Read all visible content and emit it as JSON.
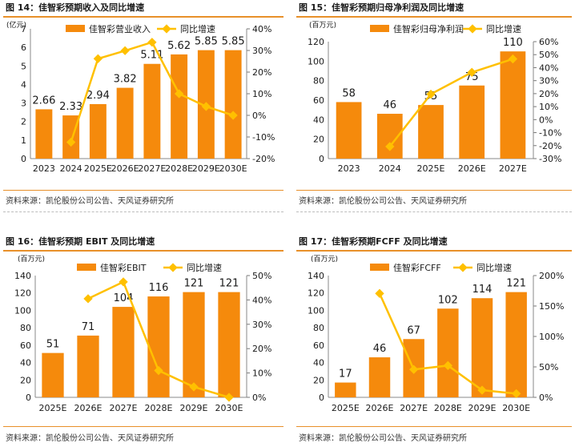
{
  "colors": {
    "bar": "#f58a0c",
    "line": "#ffc000",
    "accent": "#e8902a",
    "text": "#1a1a1a"
  },
  "charts": [
    {
      "title": "图 14：佳智彩预期收入及同比增速",
      "unit": "(亿元)",
      "source": "资料来源：凯伦股份公司公告、天风证券研究所",
      "chart_data": {
        "type": "bar",
        "categories": [
          "2023",
          "2024",
          "2025E",
          "2026E",
          "2027E",
          "2028E",
          "2029E",
          "2030E"
        ],
        "series": [
          {
            "name": "佳智彩营业收入",
            "type": "bar",
            "values": [
              2.66,
              2.33,
              2.94,
              3.82,
              5.11,
              5.62,
              5.85,
              5.85
            ]
          },
          {
            "name": "同比增速",
            "type": "line",
            "axis": "right",
            "values": [
              null,
              -12.4,
              26.2,
              29.9,
              33.8,
              10.0,
              4.1,
              0.0
            ]
          }
        ],
        "ylim": [
          0,
          7
        ],
        "yticks": [
          "0",
          "1",
          "2",
          "3",
          "4",
          "5",
          "6",
          "7"
        ],
        "y2lim": [
          -20,
          40
        ],
        "y2ticks": [
          "-20%",
          "-10%",
          "0%",
          "10%",
          "20%",
          "30%",
          "40%"
        ],
        "data_labels": [
          "2.66",
          "2.33",
          "2.94",
          "3.82",
          "5.11",
          "5.62",
          "5.85",
          "5.85"
        ]
      }
    },
    {
      "title": "图 15：佳智彩预期归母净利润及同比增速",
      "unit": "(百万元)",
      "source": "资料来源：凯伦股份公司公告、天风证券研究所",
      "chart_data": {
        "type": "bar",
        "categories": [
          "2023",
          "2024",
          "2025E",
          "2026E",
          "2027E"
        ],
        "series": [
          {
            "name": "佳智彩归母净利润",
            "type": "bar",
            "values": [
              58,
              46,
              55,
              75,
              110
            ]
          },
          {
            "name": "同比增速",
            "type": "line",
            "axis": "right",
            "values": [
              null,
              -20.7,
              19.6,
              36.4,
              46.7
            ]
          }
        ],
        "ylim": [
          0,
          120
        ],
        "yticks": [
          "0",
          "20",
          "40",
          "60",
          "80",
          "100",
          "120"
        ],
        "y2lim": [
          -30,
          60
        ],
        "y2ticks": [
          "-30%",
          "-20%",
          "-10%",
          "0%",
          "10%",
          "20%",
          "30%",
          "40%",
          "50%",
          "60%"
        ],
        "data_labels": [
          "58",
          "46",
          "55",
          "75",
          "110"
        ]
      }
    },
    {
      "title": "图 16：佳智彩预期 EBIT 及同比增速",
      "unit": "(百万元)",
      "source": "资料来源：凯伦股份公司公告、天风证券研究所",
      "chart_data": {
        "type": "bar",
        "categories": [
          "2025E",
          "2026E",
          "2027E",
          "2028E",
          "2029E",
          "2030E"
        ],
        "series": [
          {
            "name": "佳智彩EBIT",
            "type": "bar",
            "values": [
              51,
              71,
              104,
              116,
              121,
              121
            ]
          },
          {
            "name": "同比增速",
            "type": "line",
            "axis": "right",
            "values": [
              null,
              40.5,
              47.4,
              11.0,
              4.3,
              0.0
            ]
          }
        ],
        "ylim": [
          0,
          140
        ],
        "yticks": [
          "0",
          "20",
          "40",
          "60",
          "80",
          "100",
          "120",
          "140"
        ],
        "y2lim": [
          0,
          50
        ],
        "y2ticks": [
          "0%",
          "10%",
          "20%",
          "30%",
          "40%",
          "50%"
        ],
        "data_labels": [
          "51",
          "71",
          "104",
          "116",
          "121",
          "121"
        ]
      }
    },
    {
      "title": "图 17：佳智彩预期FCFF 及同比增速",
      "unit": "(百万元)",
      "source": "资料来源：凯伦股份公司公告、天风证券研究所",
      "chart_data": {
        "type": "bar",
        "categories": [
          "2025E",
          "2026E",
          "2027E",
          "2028E",
          "2029E",
          "2030E"
        ],
        "series": [
          {
            "name": "佳智彩FCFF",
            "type": "bar",
            "values": [
              17,
              46,
              67,
              102,
              114,
              121
            ]
          },
          {
            "name": "同比增速",
            "type": "line",
            "axis": "right",
            "values": [
              null,
              170.6,
              45.7,
              52.2,
              11.8,
              6.1
            ]
          }
        ],
        "ylim": [
          0,
          140
        ],
        "yticks": [
          "0",
          "20",
          "40",
          "60",
          "80",
          "100",
          "120",
          "140"
        ],
        "y2lim": [
          0,
          200
        ],
        "y2ticks": [
          "0%",
          "50%",
          "100%",
          "150%",
          "200%"
        ],
        "data_labels": [
          "17",
          "46",
          "67",
          "102",
          "114",
          "121"
        ]
      }
    }
  ]
}
